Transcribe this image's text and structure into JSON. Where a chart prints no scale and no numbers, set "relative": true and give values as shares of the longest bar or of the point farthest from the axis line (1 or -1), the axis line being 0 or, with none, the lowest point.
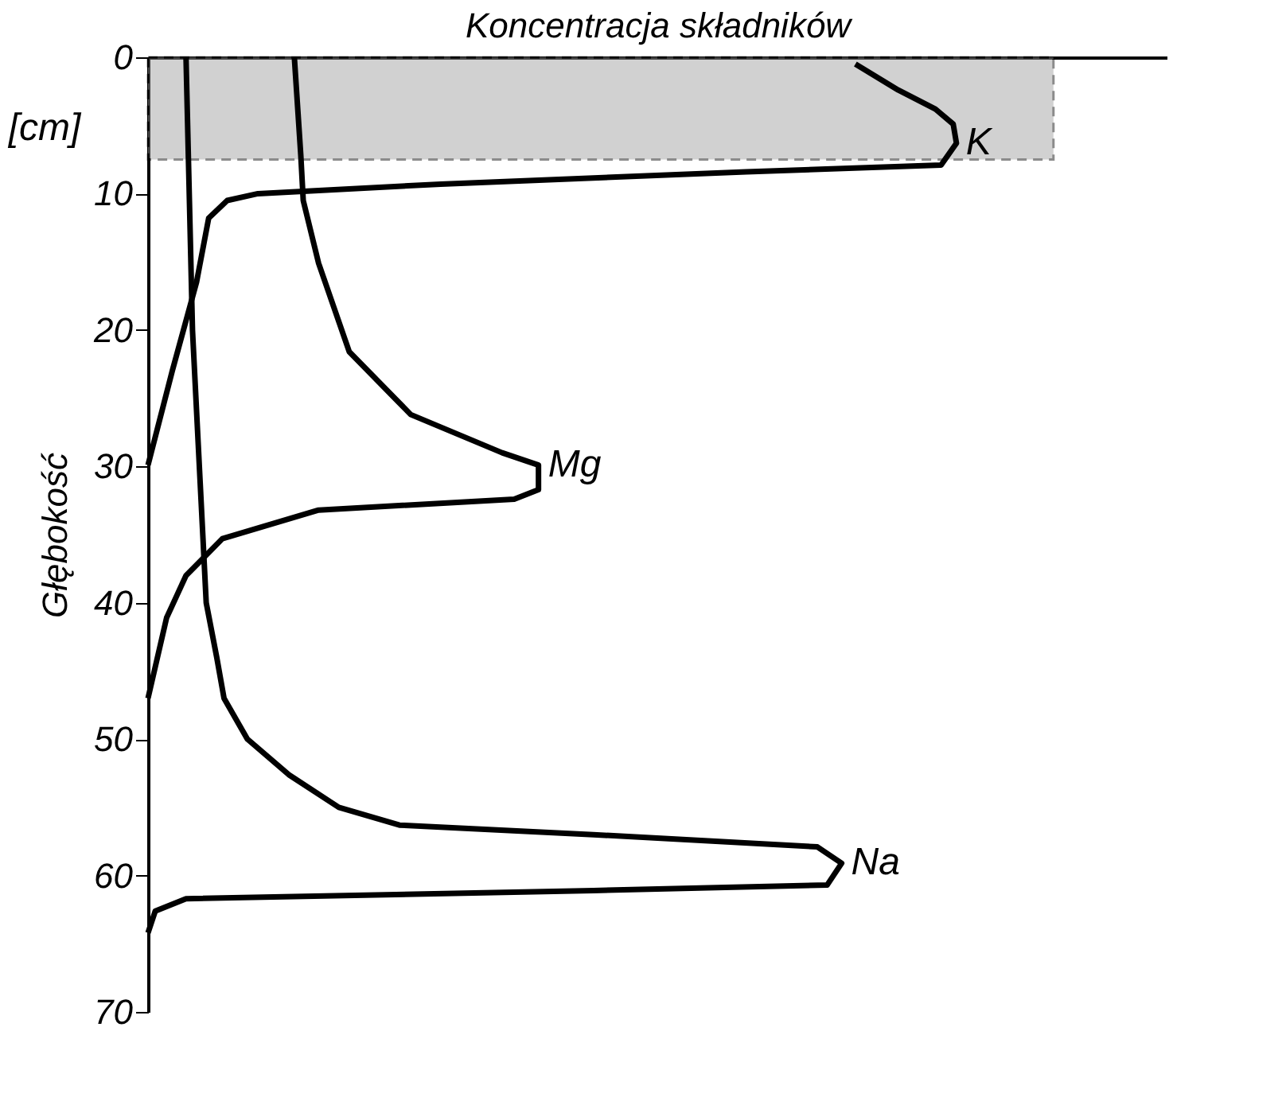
{
  "chart_data": {
    "type": "line",
    "xlabel": "Koncentracja składników",
    "ylabel": "Głębokość",
    "annotations": [
      "[cm]"
    ],
    "orientation": "horizontal",
    "relative": true,
    "ylim": [
      70,
      0
    ],
    "yticks": [
      0,
      10,
      20,
      30,
      40,
      50,
      60,
      70
    ],
    "legend": false,
    "grid": false,
    "line_style": "solid",
    "marker": "none",
    "bands": [
      {
        "axis": "y",
        "from": 0,
        "to": 7.5,
        "color": "#9a9a9a"
      }
    ],
    "series": [
      {
        "name": "K",
        "color": "#000000",
        "x": [
          0.5,
          2.4,
          3.8,
          4.9,
          6.3,
          7.9,
          8.4,
          9.3,
          10,
          10.5,
          11.8,
          16.5,
          23,
          29.9
        ],
        "values": [
          0.875,
          0.928,
          0.974,
          0.996,
          1,
          0.981,
          0.74,
          0.362,
          0.136,
          0.098,
          0.075,
          0.06,
          0.03,
          0
        ]
      },
      {
        "name": "Mg",
        "color": "#000000",
        "x": [
          0,
          7.2,
          10.5,
          15.1,
          21.6,
          26.2,
          29,
          29.9,
          31.7,
          32.4,
          33.2,
          35.3,
          38,
          41.1,
          47
        ],
        "values": [
          0.181,
          0.189,
          0.192,
          0.211,
          0.249,
          0.325,
          0.438,
          0.483,
          0.483,
          0.453,
          0.211,
          0.092,
          0.047,
          0.023,
          0
        ]
      },
      {
        "name": "Na",
        "color": "#000000",
        "x": [
          0,
          20,
          40,
          44,
          47,
          50,
          52.6,
          55,
          56.3,
          57,
          57.9,
          59.1,
          60.7,
          61.1,
          61.7,
          62.6,
          64.2
        ],
        "values": [
          0.047,
          0.055,
          0.072,
          0.085,
          0.094,
          0.123,
          0.174,
          0.236,
          0.311,
          0.551,
          0.828,
          0.858,
          0.84,
          0.551,
          0.047,
          0.009,
          0
        ]
      }
    ]
  }
}
